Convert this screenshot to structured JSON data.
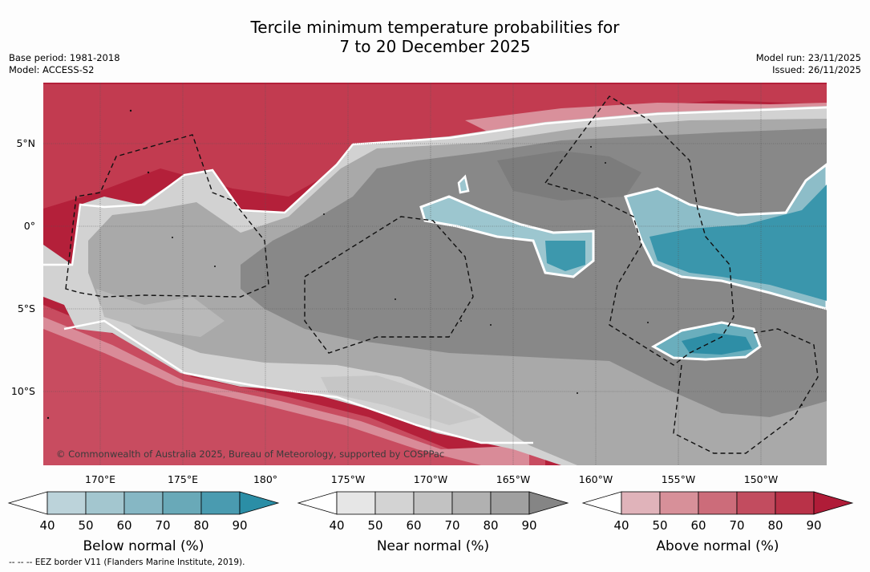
{
  "title": {
    "line1": "Tercile minimum temperature probabilities for",
    "line2": "7 to 20 December 2025"
  },
  "info": {
    "base_period": "Base period: 1981-2018",
    "model": "Model: ACCESS-S2",
    "model_run": "Model run: 23/11/2025",
    "issued": "Issued: 26/11/2025"
  },
  "map": {
    "lat_labels": [
      "5°N",
      "0°",
      "5°S",
      "10°S"
    ],
    "lon_labels": [
      "170°E",
      "175°E",
      "180°",
      "175°W",
      "170°W",
      "165°W",
      "160°W",
      "155°W",
      "150°W"
    ],
    "credit": "© Commonwealth of Australia 2025, Bureau of Meteorology, supported by COSPPac",
    "colors": {
      "ocean_warm": "#b4203a",
      "near_dark": "#8a8a8a",
      "near_light": "#d6d6d6",
      "cold": "#2e90a8"
    }
  },
  "colorbars": [
    {
      "title": "Below normal (%)",
      "ticks": [
        "40",
        "50",
        "60",
        "70",
        "80",
        "90"
      ],
      "colors": [
        "#ffffff",
        "#bcd3da",
        "#a3c6cf",
        "#86b7c4",
        "#69a9b8",
        "#4a9bb0",
        "#2b8ea6"
      ]
    },
    {
      "title": "Near normal (%)",
      "ticks": [
        "40",
        "50",
        "60",
        "70",
        "80",
        "90"
      ],
      "colors": [
        "#ffffff",
        "#e6e6e6",
        "#d3d3d3",
        "#c2c2c2",
        "#b1b1b1",
        "#a0a0a0",
        "#858585"
      ]
    },
    {
      "title": "Above normal (%)",
      "ticks": [
        "40",
        "50",
        "60",
        "70",
        "80",
        "90"
      ],
      "colors": [
        "#ffffff",
        "#e0b3ba",
        "#d79099",
        "#cc6c7a",
        "#c24c5f",
        "#b93248",
        "#b01c38"
      ]
    }
  ],
  "footnote": "-- -- -- EEZ border V11 (Flanders Marine Institute, 2019)."
}
